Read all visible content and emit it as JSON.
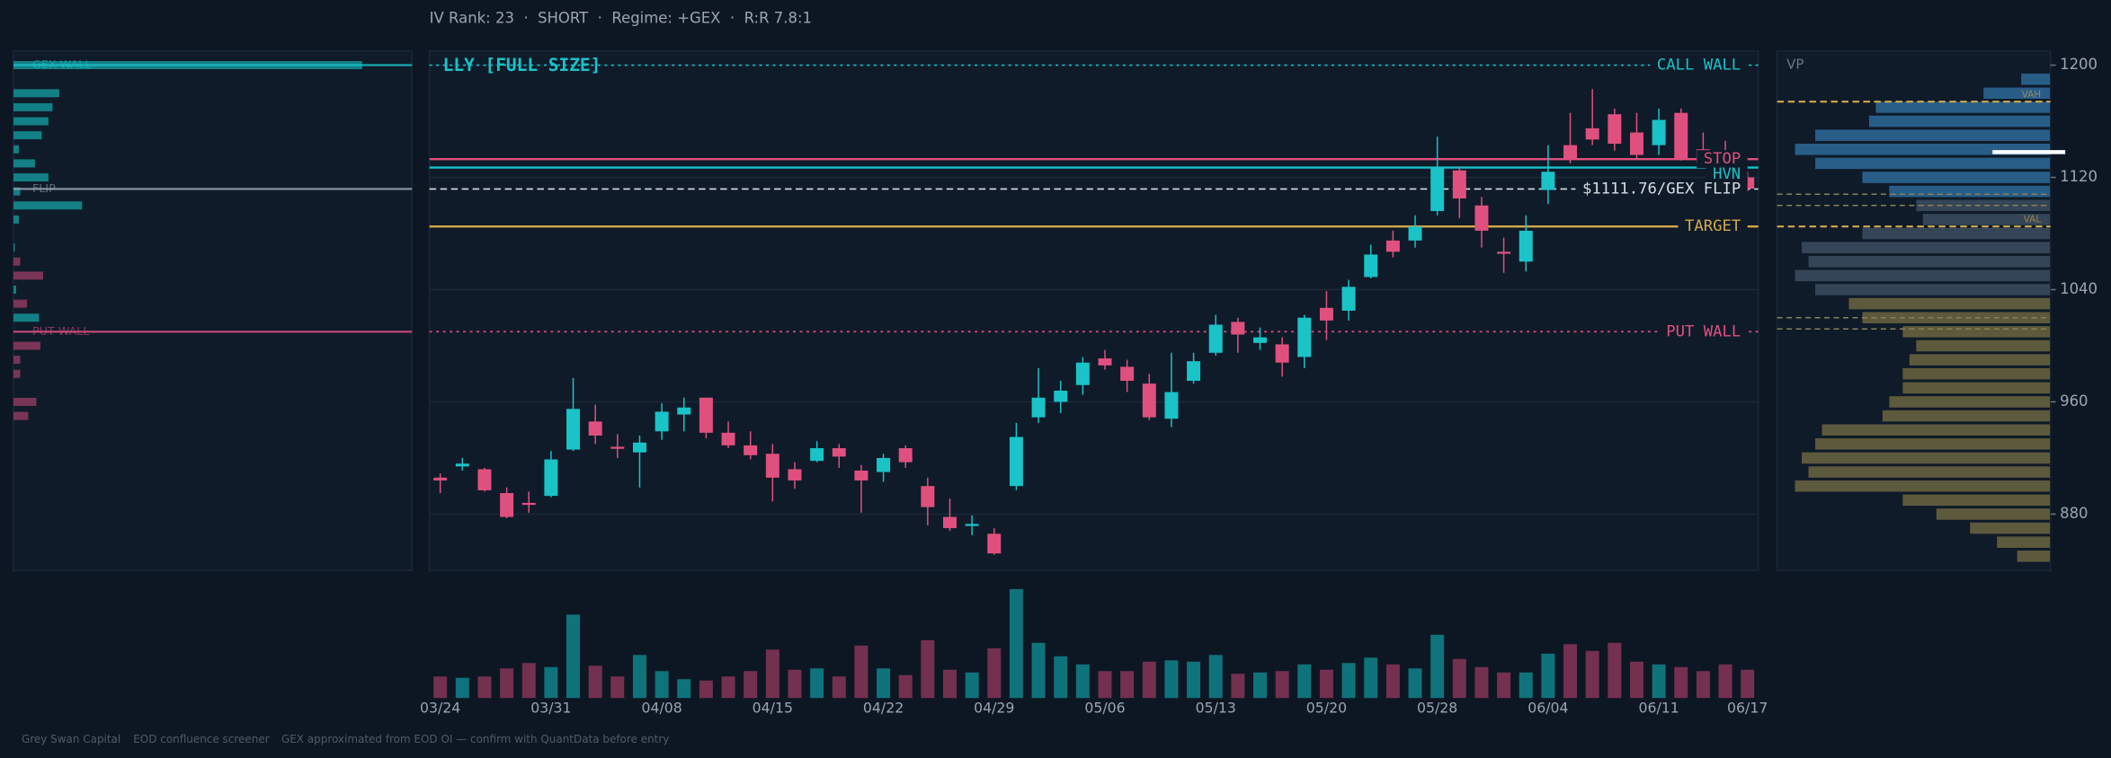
{
  "header": "IV Rank: 23  ·  SHORT  ·  Regime: +GEX  ·  R:R 7.8:1",
  "chart_data": [
    {
      "type": "candlestick",
      "title": "LLY [FULL SIZE]",
      "up_color": "#19c3c8",
      "down_color": "#e0507e",
      "open": [
        906,
        914,
        912,
        895,
        888,
        893,
        926,
        946,
        928,
        924,
        939,
        951,
        963,
        938,
        929,
        923,
        912,
        918,
        927,
        911,
        910,
        927,
        900,
        878,
        872,
        866,
        900,
        949,
        960,
        972,
        991,
        985,
        973,
        948,
        975,
        995,
        1017,
        1002,
        1001,
        992,
        1027,
        1025,
        1049,
        1075,
        1075,
        1096,
        1125,
        1100,
        1067,
        1060,
        1111,
        1143,
        1155,
        1165,
        1152,
        1143,
        1166,
        1140,
        1135,
        1120
      ],
      "high": [
        909,
        920,
        913,
        899,
        896,
        925,
        977,
        958,
        937,
        936,
        959,
        963,
        963,
        946,
        939,
        930,
        917,
        932,
        930,
        915,
        923,
        929,
        906,
        891,
        879,
        870,
        945,
        984,
        975,
        992,
        997,
        990,
        980,
        995,
        995,
        1022,
        1020,
        1013,
        1006,
        1022,
        1039,
        1047,
        1072,
        1082,
        1093,
        1149,
        1128,
        1106,
        1077,
        1093,
        1143,
        1166,
        1183,
        1169,
        1166,
        1169,
        1169,
        1152,
        1146,
        1124
      ],
      "low": [
        895,
        911,
        896,
        877,
        881,
        892,
        925,
        930,
        920,
        899,
        933,
        939,
        934,
        927,
        919,
        889,
        898,
        917,
        913,
        881,
        903,
        913,
        872,
        868,
        865,
        851,
        897,
        945,
        952,
        965,
        983,
        967,
        947,
        942,
        973,
        993,
        995,
        997,
        978,
        984,
        1004,
        1018,
        1048,
        1063,
        1070,
        1093,
        1091,
        1070,
        1052,
        1053,
        1101,
        1130,
        1143,
        1139,
        1133,
        1136,
        1132,
        1128,
        1120,
        1110
      ],
      "close": [
        904,
        916,
        897,
        878,
        887,
        919,
        955,
        936,
        927,
        931,
        953,
        956,
        938,
        929,
        922,
        906,
        904,
        927,
        921,
        904,
        920,
        917,
        885,
        870,
        873,
        852,
        935,
        963,
        968,
        988,
        986,
        975,
        949,
        967,
        989,
        1015,
        1008,
        1006,
        988,
        1020,
        1018,
        1042,
        1065,
        1067,
        1085,
        1127,
        1105,
        1082,
        1066,
        1082,
        1124,
        1133,
        1147,
        1144,
        1136,
        1161,
        1133,
        1130,
        1124,
        1112
      ],
      "ylim": [
        840,
        1210
      ],
      "yticks": [
        880,
        960,
        1040,
        1120,
        1200
      ],
      "grid": true,
      "levels": [
        {
          "label": "CALL WALL",
          "value": 1200,
          "color": "#19c3c8",
          "style": "dotted"
        },
        {
          "label": "STOP",
          "value": 1133,
          "color": "#e0507e",
          "style": "solid"
        },
        {
          "label": "HVN",
          "value": 1127,
          "color": "#19c3c8",
          "style": "solid"
        },
        {
          "label": "$1111.76/GEX FLIP",
          "value": 1111.76,
          "color": "#d8dde3",
          "style": "dashed"
        },
        {
          "label": "TARGET",
          "value": 1085,
          "color": "#d4a94a",
          "style": "solid"
        },
        {
          "label": "PUT WALL",
          "value": 1010,
          "color": "#e0507e",
          "style": "dotted"
        }
      ]
    },
    {
      "type": "volume",
      "up_color": "#0f737b",
      "down_color": "#74304f",
      "categories": [
        "03/24",
        null,
        null,
        null,
        null,
        "03/31",
        null,
        null,
        null,
        null,
        "04/08",
        null,
        null,
        null,
        null,
        "04/15",
        null,
        null,
        null,
        null,
        "04/22",
        null,
        null,
        null,
        null,
        "04/29",
        null,
        null,
        null,
        null,
        "05/06",
        null,
        null,
        null,
        null,
        "05/13",
        null,
        null,
        null,
        null,
        "05/20",
        null,
        null,
        null,
        null,
        "05/28",
        null,
        null,
        null,
        null,
        "06/04",
        null,
        null,
        null,
        null,
        "06/11",
        null,
        null,
        null,
        "06/17"
      ],
      "values": [
        16,
        15,
        16,
        22,
        26,
        23,
        62,
        24,
        16,
        32,
        20,
        14,
        13,
        16,
        20,
        36,
        21,
        22,
        16,
        39,
        22,
        17,
        43,
        21,
        19,
        37,
        81,
        41,
        31,
        25,
        20,
        20,
        27,
        28,
        27,
        32,
        18,
        19,
        20,
        25,
        21,
        26,
        30,
        25,
        22,
        47,
        29,
        23,
        19,
        19,
        33,
        40,
        35,
        41,
        27,
        25,
        23,
        20,
        25,
        21
      ]
    },
    {
      "type": "gex",
      "pos_color": "#137f86",
      "neg_color": "#7a3556",
      "strikes": [
        1200,
        1180,
        1170,
        1160,
        1150,
        1140,
        1130,
        1120,
        1110,
        1100,
        1090,
        1070,
        1060,
        1050,
        1040,
        1030,
        1020,
        1000,
        990,
        980,
        960,
        950
      ],
      "values": [
        259,
        34,
        29,
        26,
        21,
        4,
        16,
        26,
        5,
        51,
        4,
        1,
        -5,
        -22,
        2,
        -10,
        19,
        -20,
        -5,
        -5,
        -17,
        -11
      ],
      "levels": [
        {
          "label": "GEX WALL",
          "value": 1200,
          "color": "#19c3c8"
        },
        {
          "label": "FLIP",
          "value": 1111.76,
          "color": "#9aa5b1"
        },
        {
          "label": "PUT WALL",
          "value": 1010,
          "color": "#e0507e"
        }
      ]
    },
    {
      "type": "volume-profile",
      "title": "VP",
      "prices": [
        1190,
        1180,
        1170,
        1160,
        1150,
        1140,
        1130,
        1120,
        1110,
        1100,
        1090,
        1080,
        1070,
        1060,
        1050,
        1040,
        1030,
        1020,
        1010,
        1000,
        990,
        980,
        970,
        960,
        950,
        940,
        930,
        920,
        910,
        900,
        890,
        880,
        870,
        860,
        850
      ],
      "values": [
        22,
        50,
        130,
        135,
        175,
        190,
        175,
        140,
        120,
        100,
        95,
        140,
        185,
        180,
        190,
        175,
        150,
        140,
        110,
        100,
        105,
        110,
        110,
        120,
        125,
        170,
        175,
        185,
        180,
        190,
        110,
        85,
        60,
        40,
        25
      ],
      "row_colors": [
        "#2b6593",
        "#2b6593",
        "#2b6593",
        "#2b6593",
        "#2b6593",
        "#2b6593",
        "#2b6593",
        "#2b6593",
        "#2b6593",
        "#3a4a5e",
        "#3a4a5e",
        "#3a4a5e",
        "#3a4a5e",
        "#3a4a5e",
        "#3a4a5e",
        "#3a4a5e",
        "#66603f",
        "#66603f",
        "#66603f",
        "#66603f",
        "#66603f",
        "#66603f",
        "#66603f",
        "#66603f",
        "#66603f",
        "#66603f",
        "#66603f",
        "#66603f",
        "#66603f",
        "#66603f",
        "#66603f",
        "#66603f",
        "#66603f",
        "#66603f",
        "#66603f"
      ],
      "levels": [
        {
          "label": "VAH",
          "value": 1174,
          "color": "#d4a94a"
        },
        {
          "label": "VAL",
          "value": 1085,
          "color": "#d4a94a"
        }
      ],
      "poc": 1138,
      "poc_color": "#ffffff",
      "dashed_levels": [
        1108,
        1100,
        1020,
        1012
      ],
      "dashed_color": "#8a8156"
    }
  ],
  "footer": [
    "Grey Swan Capital",
    "EOD confluence screener",
    "GEX approximated from EOD OI — confirm with QuantData before entry"
  ]
}
